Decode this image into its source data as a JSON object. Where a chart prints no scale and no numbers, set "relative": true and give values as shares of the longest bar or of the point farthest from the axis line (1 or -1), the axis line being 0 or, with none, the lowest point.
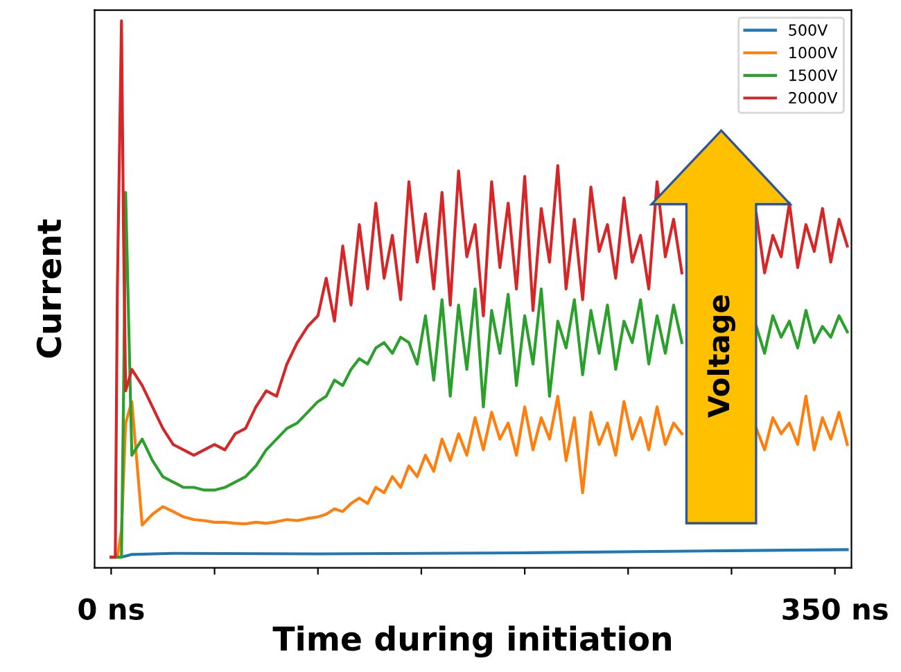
{
  "chart_data": {
    "type": "line",
    "relative": true,
    "xlabel": "Time during initiation",
    "ylabel": "Current",
    "annotations": [
      "Voltage"
    ],
    "xlim": [
      -8,
      358
    ],
    "xticks": [
      {
        "value": 0,
        "label": "0 ns"
      },
      {
        "value": 50,
        "label": null
      },
      {
        "value": 100,
        "label": null
      },
      {
        "value": 150,
        "label": null
      },
      {
        "value": 200,
        "label": null
      },
      {
        "value": 250,
        "label": null
      },
      {
        "value": 300,
        "label": null
      },
      {
        "value": 350,
        "label": "350 ns"
      }
    ],
    "x": [
      0,
      2,
      3,
      5,
      6,
      7,
      10,
      15,
      20,
      25,
      30,
      35,
      40,
      45,
      50,
      55,
      60,
      65,
      70,
      75,
      80,
      85,
      90,
      95,
      100,
      104,
      108,
      112,
      116,
      120,
      124,
      128,
      132,
      136,
      140,
      144,
      148,
      152,
      156,
      160,
      164,
      168,
      172,
      176,
      180,
      184,
      188,
      192,
      196,
      200,
      204,
      208,
      212,
      216,
      220,
      224,
      228,
      232,
      236,
      240,
      244,
      248,
      252,
      256,
      260,
      264,
      268,
      272,
      276,
      280,
      284,
      288,
      292,
      296,
      300,
      304,
      308,
      312,
      316,
      320,
      324,
      328,
      332,
      336,
      340,
      344,
      348,
      352,
      356
    ],
    "tick_labels": "x",
    "grid": false,
    "legend": "top right",
    "line_style": "solid",
    "marker": "none",
    "series": [
      {
        "name": "500V",
        "color": "#1f77b4",
        "x": [
          0,
          5,
          10,
          30,
          100,
          200,
          300,
          356
        ],
        "values": [
          0,
          0,
          0.005,
          0.007,
          0.006,
          0.008,
          0.012,
          0.014
        ]
      },
      {
        "name": "1000V",
        "color": "#ff7f0e",
        "values": [
          0,
          0,
          0,
          0.05,
          0.15,
          0.25,
          0.29,
          0.06,
          0.08,
          0.094,
          0.085,
          0.075,
          0.07,
          0.068,
          0.065,
          0.065,
          0.063,
          0.062,
          0.065,
          0.063,
          0.066,
          0.07,
          0.068,
          0.072,
          0.075,
          0.08,
          0.09,
          0.085,
          0.1,
          0.11,
          0.1,
          0.13,
          0.12,
          0.15,
          0.13,
          0.17,
          0.15,
          0.19,
          0.16,
          0.22,
          0.18,
          0.23,
          0.19,
          0.26,
          0.2,
          0.27,
          0.22,
          0.25,
          0.19,
          0.28,
          0.2,
          0.26,
          0.22,
          0.3,
          0.18,
          0.26,
          0.12,
          0.27,
          0.21,
          0.25,
          0.19,
          0.29,
          0.22,
          0.26,
          0.2,
          0.28,
          0.21,
          0.25,
          0.23,
          null,
          null,
          null,
          null,
          null,
          null,
          null,
          null,
          0.24,
          0.2,
          0.26,
          0.23,
          0.25,
          0.21,
          0.3,
          0.2,
          0.26,
          0.22,
          0.27,
          0.21
        ]
      },
      {
        "name": "1500V",
        "color": "#2ca02c",
        "values": [
          0,
          0,
          0,
          0,
          0.3,
          0.68,
          0.19,
          0.22,
          0.18,
          0.15,
          0.14,
          0.13,
          0.13,
          0.125,
          0.125,
          0.13,
          0.14,
          0.15,
          0.17,
          0.2,
          0.22,
          0.24,
          0.25,
          0.27,
          0.29,
          0.3,
          0.33,
          0.32,
          0.35,
          0.37,
          0.36,
          0.39,
          0.4,
          0.38,
          0.41,
          0.4,
          0.36,
          0.45,
          0.33,
          0.48,
          0.3,
          0.47,
          0.35,
          0.5,
          0.28,
          0.46,
          0.38,
          0.49,
          0.32,
          0.45,
          0.36,
          0.5,
          0.3,
          0.44,
          0.39,
          0.48,
          0.34,
          0.46,
          0.38,
          0.47,
          0.35,
          0.44,
          0.4,
          0.48,
          0.36,
          0.45,
          0.38,
          0.47,
          0.4,
          null,
          null,
          null,
          null,
          null,
          null,
          null,
          null,
          0.43,
          0.38,
          0.45,
          0.41,
          0.44,
          0.39,
          0.46,
          0.4,
          0.43,
          0.41,
          0.45,
          0.42
        ]
      },
      {
        "name": "2000V",
        "color": "#d62728",
        "values": [
          0,
          0,
          0.5,
          1.0,
          0.6,
          0.31,
          0.35,
          0.32,
          0.28,
          0.24,
          0.21,
          0.2,
          0.19,
          0.2,
          0.21,
          0.2,
          0.23,
          0.24,
          0.28,
          0.31,
          0.3,
          0.36,
          0.4,
          0.43,
          0.45,
          0.52,
          0.44,
          0.58,
          0.47,
          0.62,
          0.5,
          0.66,
          0.52,
          0.6,
          0.48,
          0.7,
          0.55,
          0.64,
          0.5,
          0.68,
          0.47,
          0.72,
          0.56,
          0.62,
          0.45,
          0.7,
          0.54,
          0.66,
          0.5,
          0.71,
          0.46,
          0.65,
          0.55,
          0.73,
          0.5,
          0.63,
          0.48,
          0.69,
          0.57,
          0.62,
          0.52,
          0.67,
          0.55,
          0.6,
          0.5,
          0.7,
          0.56,
          0.63,
          0.53,
          null,
          null,
          null,
          null,
          null,
          null,
          null,
          null,
          0.64,
          0.53,
          0.6,
          0.56,
          0.66,
          0.54,
          0.62,
          0.57,
          0.65,
          0.55,
          0.63,
          0.58
        ]
      }
    ]
  }
}
